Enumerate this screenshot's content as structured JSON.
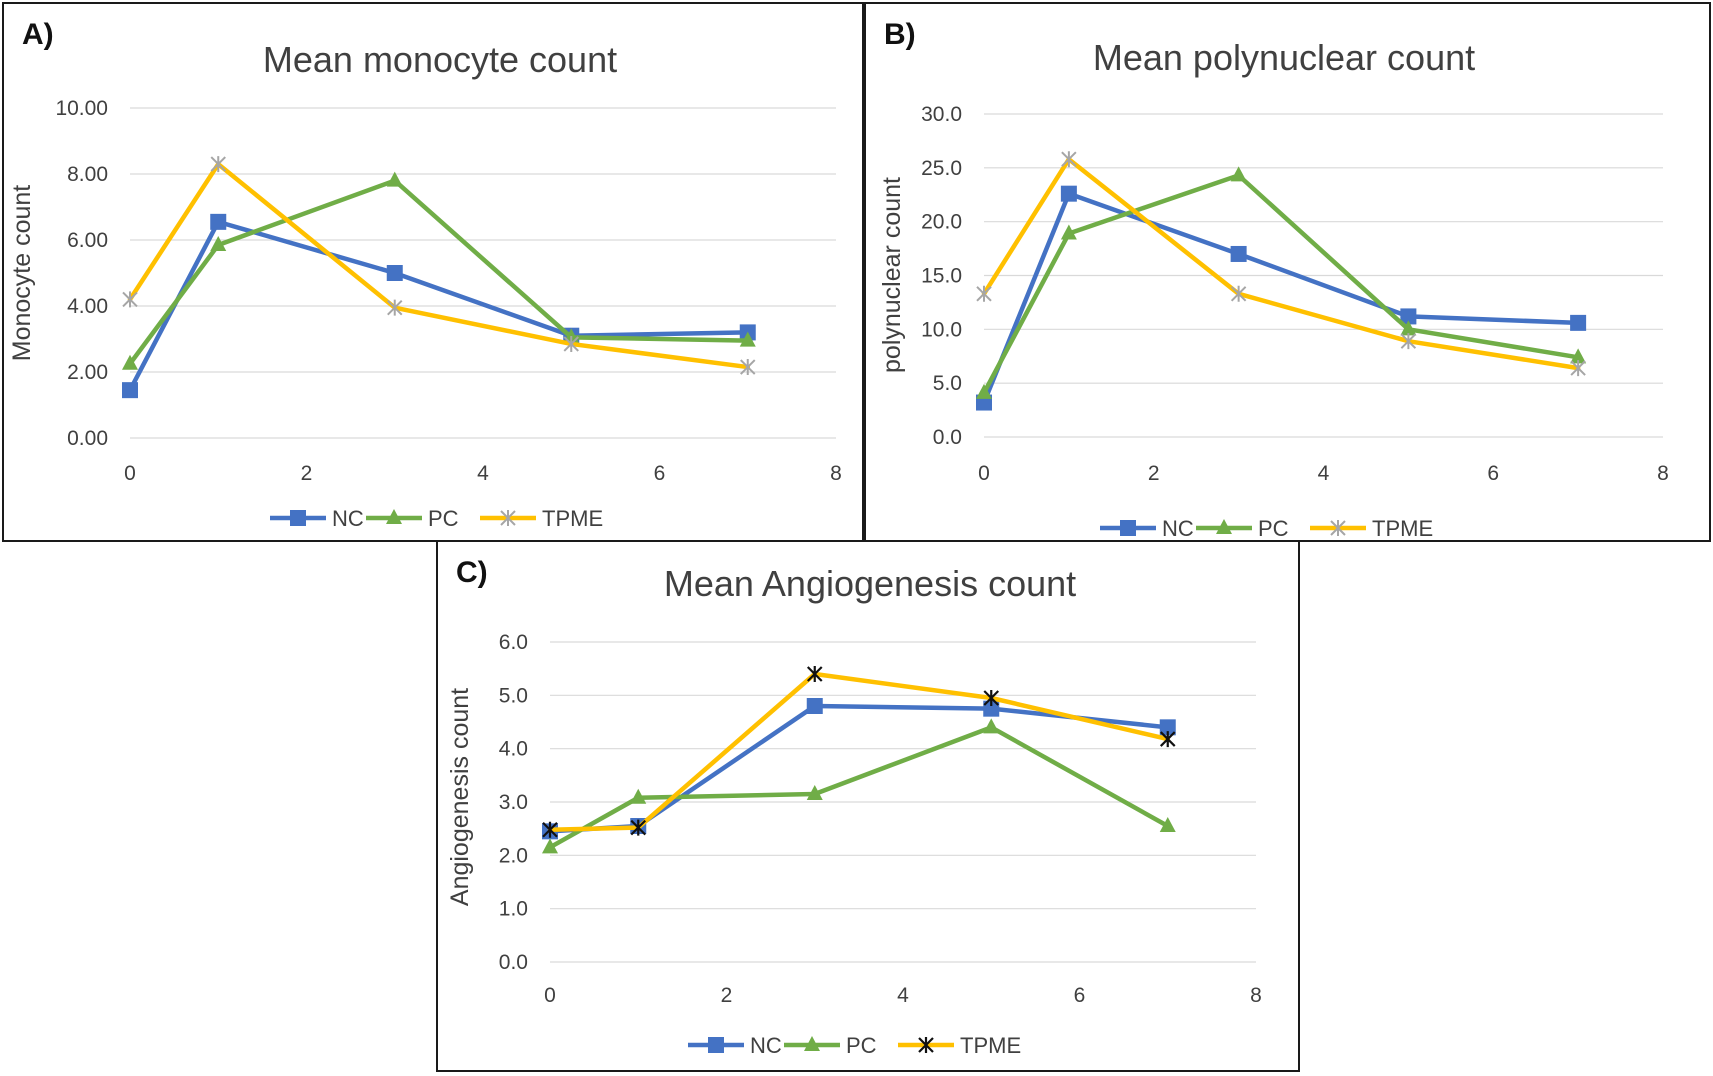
{
  "colors": {
    "NC": "#4472c4",
    "PC": "#70ad47",
    "TPME": "#ffc000"
  },
  "panels": [
    {
      "label": "A)",
      "chart_data": {
        "type": "line",
        "title": "Mean monocyte count",
        "xlabel": "",
        "ylabel": "Monocyte count",
        "xlim": [
          0,
          8
        ],
        "ylim": [
          0,
          10
        ],
        "x_ticks": [
          "0",
          "2",
          "4",
          "6",
          "8"
        ],
        "y_ticks": [
          "0.00",
          "2.00",
          "4.00",
          "6.00",
          "8.00",
          "10.00"
        ],
        "grid": true,
        "legend_position": "bottom",
        "series": [
          {
            "name": "NC",
            "marker": "square",
            "x": [
              0,
              1,
              3,
              5,
              7
            ],
            "y": [
              1.45,
              6.55,
              5.0,
              3.1,
              3.2
            ]
          },
          {
            "name": "PC",
            "marker": "triangle",
            "x": [
              0,
              1,
              3,
              5,
              7
            ],
            "y": [
              2.25,
              5.85,
              7.8,
              3.05,
              2.95
            ]
          },
          {
            "name": "TPME",
            "marker": "star",
            "x": [
              0,
              1,
              3,
              5,
              7
            ],
            "y": [
              4.2,
              8.3,
              3.95,
              2.85,
              2.15
            ]
          }
        ]
      }
    },
    {
      "label": "B)",
      "chart_data": {
        "type": "line",
        "title": "Mean polynuclear count",
        "xlabel": "",
        "ylabel": "polynuclear count",
        "xlim": [
          0,
          8
        ],
        "ylim": [
          0,
          30
        ],
        "x_ticks": [
          "0",
          "2",
          "4",
          "6",
          "8"
        ],
        "y_ticks": [
          "0.0",
          "5.0",
          "10.0",
          "15.0",
          "20.0",
          "25.0",
          "30.0"
        ],
        "grid": true,
        "legend_position": "bottom",
        "series": [
          {
            "name": "NC",
            "marker": "square",
            "x": [
              0,
              1,
              3,
              5,
              7
            ],
            "y": [
              3.2,
              22.6,
              17.0,
              11.2,
              10.6
            ]
          },
          {
            "name": "PC",
            "marker": "triangle",
            "x": [
              0,
              1,
              3,
              5,
              7
            ],
            "y": [
              4.1,
              18.9,
              24.3,
              10.0,
              7.4
            ]
          },
          {
            "name": "TPME",
            "marker": "star",
            "x": [
              0,
              1,
              3,
              5,
              7
            ],
            "y": [
              13.3,
              25.8,
              13.3,
              8.9,
              6.4
            ]
          }
        ]
      }
    },
    {
      "label": "C)",
      "chart_data": {
        "type": "line",
        "title": "Mean Angiogenesis count",
        "xlabel": "",
        "ylabel": "Angiogenesis count",
        "xlim": [
          0,
          8
        ],
        "ylim": [
          0,
          6
        ],
        "x_ticks": [
          "0",
          "2",
          "4",
          "6",
          "8"
        ],
        "y_ticks": [
          "0.0",
          "1.0",
          "2.0",
          "3.0",
          "4.0",
          "5.0",
          "6.0"
        ],
        "grid": true,
        "legend_position": "bottom",
        "series": [
          {
            "name": "NC",
            "marker": "square",
            "x": [
              0,
              1,
              3,
              5,
              7
            ],
            "y": [
              2.45,
              2.55,
              4.8,
              4.75,
              4.4
            ]
          },
          {
            "name": "PC",
            "marker": "triangle",
            "x": [
              0,
              1,
              3,
              5,
              7
            ],
            "y": [
              2.15,
              3.08,
              3.15,
              4.4,
              2.55
            ]
          },
          {
            "name": "TPME",
            "marker": "xstar",
            "x": [
              0,
              1,
              3,
              5,
              7
            ],
            "y": [
              2.48,
              2.52,
              5.4,
              4.95,
              4.18
            ]
          }
        ]
      }
    }
  ]
}
